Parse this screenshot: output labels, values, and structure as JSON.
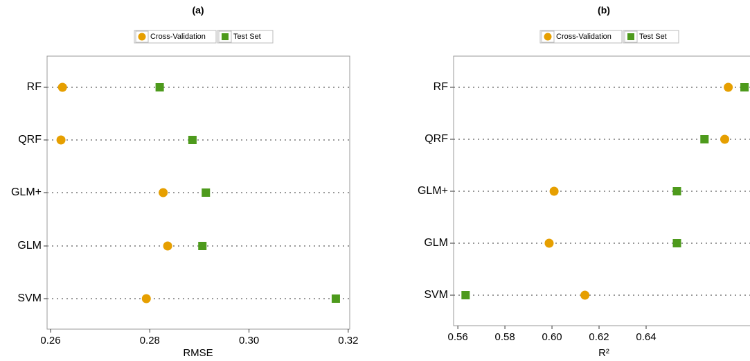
{
  "chart_data": [
    {
      "type": "dot",
      "title": "(a)",
      "xlabel": "RMSE",
      "categories": [
        "RF",
        "QRF",
        "GLM+",
        "GLM",
        "SVM"
      ],
      "series": [
        {
          "name": "Cross-Validation",
          "color": "#e69f00",
          "marker": "circle",
          "values": [
            0.2624,
            0.2621,
            0.2827,
            0.2836,
            0.2793
          ]
        },
        {
          "name": "Test Set",
          "color": "#4d9a1c",
          "marker": "square",
          "values": [
            0.282,
            0.2886,
            0.2913,
            0.2906,
            0.3175
          ]
        }
      ],
      "xlim": [
        0.2593,
        0.3203
      ],
      "xticks": [
        0.26,
        0.28,
        {
          "value": 0.3,
          "label": "0.30"
        },
        0.32
      ]
    },
    {
      "type": "dot",
      "title": "(b)",
      "xlabel": "R²",
      "categories": [
        "RF",
        "QRF",
        "GLM+",
        "GLM",
        "SVM"
      ],
      "series": [
        {
          "name": "Cross-Validation",
          "color": "#e69f00",
          "marker": "circle",
          "values": [
            0.6749,
            0.6734,
            0.6009,
            0.5988,
            0.614
          ]
        },
        {
          "name": "Test Set",
          "color": "#4d9a1c",
          "marker": "square",
          "values": [
            0.6818,
            0.6648,
            0.6531,
            0.6531,
            0.5633
          ]
        }
      ],
      "xlim": [
        0.5582,
        0.6862
      ],
      "xticks": [
        0.56,
        0.58,
        {
          "value": 0.6,
          "label": "0.60"
        },
        0.62,
        0.64
      ]
    }
  ]
}
